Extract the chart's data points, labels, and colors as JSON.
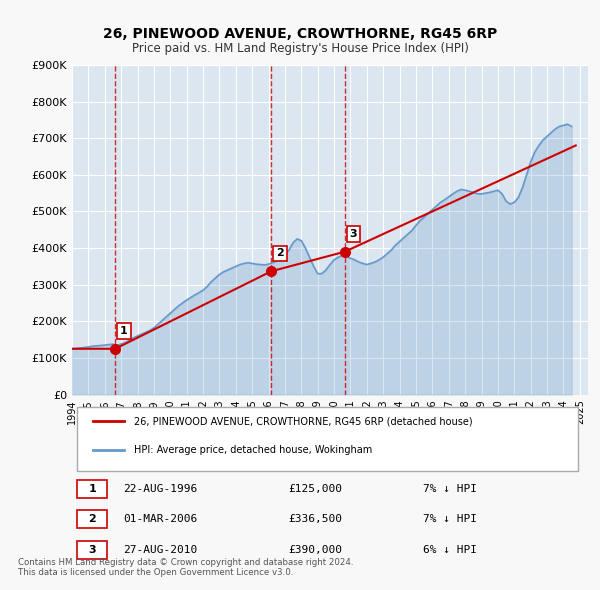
{
  "title": "26, PINEWOOD AVENUE, CROWTHORNE, RG45 6RP",
  "subtitle": "Price paid vs. HM Land Registry's House Price Index (HPI)",
  "xlabel": "",
  "ylabel": "",
  "ylim": [
    0,
    900000
  ],
  "yticks": [
    0,
    100000,
    200000,
    300000,
    400000,
    500000,
    600000,
    700000,
    800000,
    900000
  ],
  "ytick_labels": [
    "£0",
    "£100K",
    "£200K",
    "£300K",
    "£400K",
    "£500K",
    "£600K",
    "£700K",
    "£800K",
    "£900K"
  ],
  "xlim_start": 1994.0,
  "xlim_end": 2025.5,
  "bg_color": "#f0f4fa",
  "plot_bg_color": "#dce6f0",
  "grid_color": "#ffffff",
  "sale_color": "#cc0000",
  "hpi_color": "#6699cc",
  "vline_color": "#cc0000",
  "sale_dates": [
    1996.64,
    2006.16,
    2010.65
  ],
  "sale_prices": [
    125000,
    336500,
    390000
  ],
  "sale_labels": [
    "1",
    "2",
    "3"
  ],
  "vline_dates": [
    1996.64,
    2006.16,
    2010.65
  ],
  "legend_sale_label": "26, PINEWOOD AVENUE, CROWTHORNE, RG45 6RP (detached house)",
  "legend_hpi_label": "HPI: Average price, detached house, Wokingham",
  "table_rows": [
    [
      "1",
      "22-AUG-1996",
      "£125,000",
      "7% ↓ HPI"
    ],
    [
      "2",
      "01-MAR-2006",
      "£336,500",
      "7% ↓ HPI"
    ],
    [
      "3",
      "27-AUG-2010",
      "£390,000",
      "6% ↓ HPI"
    ]
  ],
  "footer_text": "Contains HM Land Registry data © Crown copyright and database right 2024.\nThis data is licensed under the Open Government Licence v3.0.",
  "hpi_years": [
    1994.0,
    1994.25,
    1994.5,
    1994.75,
    1995.0,
    1995.25,
    1995.5,
    1995.75,
    1996.0,
    1996.25,
    1996.5,
    1996.75,
    1997.0,
    1997.25,
    1997.5,
    1997.75,
    1998.0,
    1998.25,
    1998.5,
    1998.75,
    1999.0,
    1999.25,
    1999.5,
    1999.75,
    2000.0,
    2000.25,
    2000.5,
    2000.75,
    2001.0,
    2001.25,
    2001.5,
    2001.75,
    2002.0,
    2002.25,
    2002.5,
    2002.75,
    2003.0,
    2003.25,
    2003.5,
    2003.75,
    2004.0,
    2004.25,
    2004.5,
    2004.75,
    2005.0,
    2005.25,
    2005.5,
    2005.75,
    2006.0,
    2006.25,
    2006.5,
    2006.75,
    2007.0,
    2007.25,
    2007.5,
    2007.75,
    2008.0,
    2008.25,
    2008.5,
    2008.75,
    2009.0,
    2009.25,
    2009.5,
    2009.75,
    2010.0,
    2010.25,
    2010.5,
    2010.75,
    2011.0,
    2011.25,
    2011.5,
    2011.75,
    2012.0,
    2012.25,
    2012.5,
    2012.75,
    2013.0,
    2013.25,
    2013.5,
    2013.75,
    2014.0,
    2014.25,
    2014.5,
    2014.75,
    2015.0,
    2015.25,
    2015.5,
    2015.75,
    2016.0,
    2016.25,
    2016.5,
    2016.75,
    2017.0,
    2017.25,
    2017.5,
    2017.75,
    2018.0,
    2018.25,
    2018.5,
    2018.75,
    2019.0,
    2019.25,
    2019.5,
    2019.75,
    2020.0,
    2020.25,
    2020.5,
    2020.75,
    2021.0,
    2021.25,
    2021.5,
    2021.75,
    2022.0,
    2022.25,
    2022.5,
    2022.75,
    2023.0,
    2023.25,
    2023.5,
    2023.75,
    2024.0,
    2024.25,
    2024.5
  ],
  "hpi_values": [
    125000,
    126000,
    127000,
    128500,
    130000,
    132000,
    133000,
    134000,
    135000,
    136500,
    137500,
    134000,
    138000,
    142000,
    148000,
    155000,
    160000,
    165000,
    170000,
    175000,
    182000,
    192000,
    202000,
    212000,
    222000,
    232000,
    242000,
    250000,
    258000,
    265000,
    272000,
    278000,
    285000,
    295000,
    308000,
    318000,
    328000,
    335000,
    340000,
    345000,
    350000,
    355000,
    358000,
    360000,
    358000,
    356000,
    355000,
    354000,
    356000,
    360000,
    365000,
    370000,
    380000,
    395000,
    415000,
    425000,
    420000,
    400000,
    375000,
    350000,
    330000,
    330000,
    340000,
    355000,
    368000,
    375000,
    380000,
    378000,
    372000,
    368000,
    362000,
    358000,
    355000,
    358000,
    362000,
    368000,
    375000,
    385000,
    395000,
    408000,
    418000,
    428000,
    438000,
    448000,
    462000,
    475000,
    485000,
    495000,
    505000,
    515000,
    525000,
    532000,
    540000,
    548000,
    555000,
    560000,
    558000,
    555000,
    552000,
    548000,
    548000,
    550000,
    552000,
    555000,
    558000,
    548000,
    528000,
    520000,
    525000,
    538000,
    565000,
    600000,
    635000,
    662000,
    680000,
    695000,
    705000,
    715000,
    725000,
    732000,
    735000,
    738000,
    732000
  ],
  "sale_line_years": [
    1994.0,
    1996.64,
    2006.16,
    2010.65,
    2024.75
  ],
  "sale_line_values": [
    125000,
    125000,
    336500,
    390000,
    680000
  ],
  "xtick_years": [
    1994,
    1995,
    1996,
    1997,
    1998,
    1999,
    2000,
    2001,
    2002,
    2003,
    2004,
    2005,
    2006,
    2007,
    2008,
    2009,
    2010,
    2011,
    2012,
    2013,
    2014,
    2015,
    2016,
    2017,
    2018,
    2019,
    2020,
    2021,
    2022,
    2023,
    2024,
    2025
  ]
}
